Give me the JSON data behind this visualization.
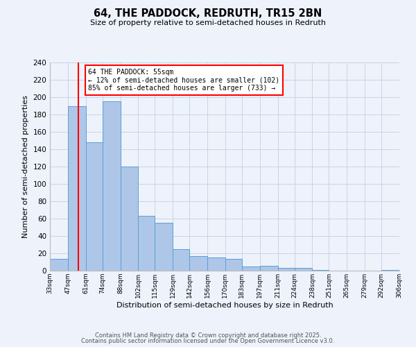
{
  "title": "64, THE PADDOCK, REDRUTH, TR15 2BN",
  "subtitle": "Size of property relative to semi-detached houses in Redruth",
  "xlabel": "Distribution of semi-detached houses by size in Redruth",
  "ylabel": "Number of semi-detached properties",
  "bar_edges": [
    33,
    47,
    61,
    74,
    88,
    102,
    115,
    129,
    142,
    156,
    170,
    183,
    197,
    211,
    224,
    238,
    251,
    265,
    279,
    292,
    306
  ],
  "bar_heights": [
    14,
    190,
    148,
    195,
    120,
    63,
    55,
    25,
    17,
    15,
    14,
    5,
    6,
    3,
    3,
    1,
    0,
    0,
    0,
    1
  ],
  "bar_color": "#aec6e8",
  "bar_edge_color": "#5a9fd4",
  "annotation_title": "64 THE PADDOCK: 55sqm",
  "annotation_line1": "← 12% of semi-detached houses are smaller (102)",
  "annotation_line2": "85% of semi-detached houses are larger (733) →",
  "red_line_x": 55,
  "ylim": [
    0,
    240
  ],
  "yticks": [
    0,
    20,
    40,
    60,
    80,
    100,
    120,
    140,
    160,
    180,
    200,
    220,
    240
  ],
  "xlim": [
    33,
    306
  ],
  "tick_labels": [
    "33sqm",
    "47sqm",
    "61sqm",
    "74sqm",
    "88sqm",
    "102sqm",
    "115sqm",
    "129sqm",
    "142sqm",
    "156sqm",
    "170sqm",
    "183sqm",
    "197sqm",
    "211sqm",
    "224sqm",
    "238sqm",
    "251sqm",
    "265sqm",
    "279sqm",
    "292sqm",
    "306sqm"
  ],
  "tick_positions": [
    33,
    47,
    61,
    74,
    88,
    102,
    115,
    129,
    142,
    156,
    170,
    183,
    197,
    211,
    224,
    238,
    251,
    265,
    279,
    292,
    306
  ],
  "bg_color": "#eef2fb",
  "grid_color": "#c8d4e8",
  "footer1": "Contains HM Land Registry data © Crown copyright and database right 2025.",
  "footer2": "Contains public sector information licensed under the Open Government Licence v3.0."
}
